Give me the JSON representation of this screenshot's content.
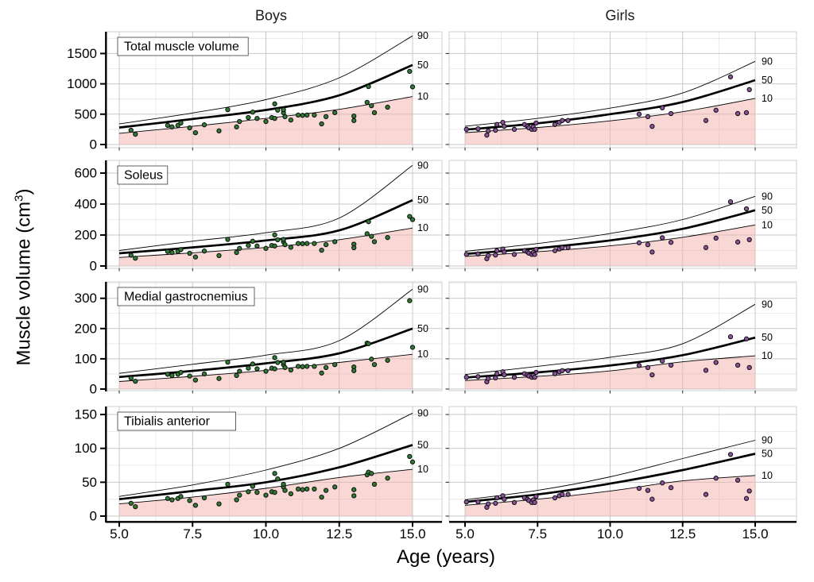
{
  "figure": {
    "column_titles": [
      "Boys",
      "Girls"
    ],
    "x_axis_title": "Age (years)",
    "y_axis_title_pre": "Muscle volume (cm",
    "y_axis_title_sup": "3",
    "y_axis_title_post": ")",
    "colors": {
      "boys_point": "#2f7d33",
      "girls_point": "#8e539f",
      "below_p10_fill": "#f2b0ab",
      "centile_line": "#000000",
      "grid_major": "#c9c9c9",
      "grid_minor": "#e4e4e4",
      "panel_border": "#cfcfcf",
      "axis_line": "#000000"
    }
  },
  "chart_data": {
    "type": "scatter",
    "description": "Muscle volume growth centile charts: scatter of individual children over 10th/50th/90th centile curves; pink region marks area below the 10th centile. Columns = sex, rows = muscle.",
    "x": {
      "label": "Age (years)",
      "ticks": [
        5.0,
        7.5,
        10.0,
        12.5,
        15.0
      ],
      "tick_labels": [
        "5.0",
        "7.5",
        "10.0",
        "12.5",
        "15.0"
      ],
      "range_years": [
        5,
        15
      ]
    },
    "ylabel": "Muscle volume (cm3)",
    "legend_position": "right-of-panel",
    "grid": true,
    "percentiles": [
      "90",
      "50",
      "10"
    ],
    "centile_ages": [
      5,
      7.5,
      10,
      12.5,
      15
    ],
    "columns": [
      "Boys",
      "Girls"
    ],
    "rows": [
      {
        "label": "Total muscle volume",
        "y_ticks": [
          0,
          500,
          1000,
          1500
        ],
        "y_tick_labels": [
          "0",
          "500",
          "1000",
          "1500"
        ],
        "boys": {
          "p90": [
            340,
            520,
            740,
            1100,
            1790
          ],
          "p50": [
            280,
            420,
            570,
            810,
            1310
          ],
          "p10": [
            185,
            300,
            430,
            580,
            790
          ],
          "ages": [
            5.4,
            5.55,
            6.65,
            6.8,
            7.0,
            7.1,
            7.4,
            7.6,
            7.9,
            8.4,
            8.7,
            9.0,
            9.1,
            9.4,
            9.55,
            9.7,
            10.0,
            10.2,
            10.3,
            10.3,
            10.4,
            10.6,
            10.6,
            10.65,
            10.85,
            11.1,
            11.25,
            11.4,
            11.65,
            11.9,
            12.05,
            12.35,
            13.0,
            13.0,
            13.45,
            13.5,
            13.6,
            13.7,
            14.15,
            14.9,
            15.0
          ],
          "values": [
            235,
            170,
            315,
            290,
            315,
            355,
            275,
            195,
            325,
            225,
            575,
            290,
            380,
            445,
            535,
            430,
            380,
            445,
            430,
            670,
            565,
            525,
            575,
            460,
            405,
            485,
            480,
            485,
            485,
            340,
            460,
            525,
            470,
            395,
            695,
            955,
            640,
            525,
            615,
            1205,
            950
          ]
        },
        "girls": {
          "p90": [
            300,
            430,
            600,
            850,
            1370
          ],
          "p50": [
            245,
            350,
            500,
            700,
            1060
          ],
          "p10": [
            195,
            280,
            390,
            540,
            760
          ],
          "ages": [
            5.05,
            5.45,
            5.75,
            5.8,
            6.05,
            6.1,
            6.3,
            6.35,
            6.7,
            7.05,
            7.15,
            7.2,
            7.3,
            7.35,
            7.4,
            7.45,
            8.1,
            8.25,
            8.35,
            8.55,
            11.0,
            11.3,
            11.45,
            11.8,
            12.1,
            13.3,
            13.65,
            14.15,
            14.4,
            14.7,
            14.8
          ],
          "values": [
            250,
            260,
            155,
            225,
            235,
            330,
            365,
            300,
            250,
            330,
            300,
            275,
            250,
            290,
            250,
            355,
            330,
            365,
            395,
            395,
            500,
            460,
            300,
            605,
            510,
            395,
            565,
            1115,
            510,
            525,
            905
          ]
        }
      },
      {
        "label": "Soleus",
        "y_ticks": [
          0,
          200,
          400,
          600
        ],
        "y_tick_labels": [
          "0",
          "200",
          "400",
          "600"
        ],
        "boys": {
          "p90": [
            100,
            160,
            215,
            310,
            650
          ],
          "p50": [
            82,
            120,
            165,
            230,
            425
          ],
          "p10": [
            55,
            85,
            120,
            170,
            245
          ],
          "ages": [
            5.4,
            5.55,
            6.65,
            6.8,
            7.0,
            7.1,
            7.4,
            7.6,
            7.9,
            8.4,
            8.7,
            9.0,
            9.1,
            9.4,
            9.55,
            9.7,
            10.0,
            10.2,
            10.3,
            10.3,
            10.4,
            10.6,
            10.6,
            10.65,
            10.85,
            11.1,
            11.25,
            11.4,
            11.65,
            11.9,
            12.05,
            12.35,
            13.0,
            13.0,
            13.45,
            13.5,
            13.6,
            13.7,
            14.15,
            14.9,
            15.0
          ],
          "values": [
            70,
            51,
            94,
            87,
            94,
            106,
            82,
            58,
            97,
            67,
            172,
            87,
            114,
            133,
            160,
            129,
            114,
            133,
            129,
            201,
            169,
            157,
            172,
            138,
            121,
            145,
            144,
            145,
            145,
            102,
            138,
            157,
            141,
            118,
            208,
            286,
            192,
            157,
            184,
            320,
            300
          ]
        },
        "girls": {
          "p90": [
            95,
            145,
            210,
            300,
            450
          ],
          "p50": [
            78,
            115,
            165,
            240,
            360
          ],
          "p10": [
            62,
            92,
            130,
            185,
            265
          ],
          "ages": [
            5.05,
            5.45,
            5.75,
            5.8,
            6.05,
            6.1,
            6.3,
            6.35,
            6.7,
            7.05,
            7.15,
            7.2,
            7.3,
            7.35,
            7.4,
            7.45,
            8.1,
            8.25,
            8.35,
            8.55,
            11.0,
            11.3,
            11.45,
            11.8,
            12.1,
            13.3,
            13.65,
            14.15,
            14.4,
            14.7,
            14.8
          ],
          "values": [
            75,
            78,
            47,
            68,
            71,
            99,
            110,
            90,
            75,
            99,
            90,
            83,
            75,
            87,
            75,
            107,
            99,
            110,
            119,
            119,
            150,
            138,
            90,
            182,
            153,
            119,
            180,
            415,
            155,
            369,
            170
          ]
        }
      },
      {
        "label": "Medial gastrocnemius",
        "y_ticks": [
          0,
          100,
          200,
          300
        ],
        "y_tick_labels": [
          "0",
          "100",
          "200",
          "300"
        ],
        "boys": {
          "p90": [
            52,
            82,
            112,
            160,
            330
          ],
          "p50": [
            40,
            60,
            85,
            118,
            200
          ],
          "p10": [
            25,
            42,
            62,
            88,
            115
          ],
          "ages": [
            5.4,
            5.55,
            6.65,
            6.8,
            7.0,
            7.1,
            7.4,
            7.6,
            7.9,
            8.4,
            8.7,
            9.0,
            9.1,
            9.4,
            9.55,
            9.7,
            10.0,
            10.2,
            10.3,
            10.3,
            10.4,
            10.6,
            10.6,
            10.65,
            10.85,
            11.1,
            11.25,
            11.4,
            11.65,
            11.9,
            12.05,
            12.35,
            13.0,
            13.0,
            13.45,
            13.5,
            13.6,
            13.7,
            14.15,
            14.9,
            15.0
          ],
          "values": [
            36,
            26,
            49,
            45,
            49,
            55,
            43,
            30,
            50,
            35,
            89,
            45,
            59,
            69,
            83,
            67,
            59,
            69,
            67,
            104,
            88,
            81,
            89,
            71,
            63,
            75,
            74,
            75,
            75,
            53,
            71,
            81,
            73,
            61,
            152,
            150,
            99,
            81,
            95,
            292,
            138
          ]
        },
        "girls": {
          "p90": [
            48,
            75,
            105,
            150,
            280
          ],
          "p50": [
            38,
            55,
            78,
            112,
            170
          ],
          "p10": [
            28,
            42,
            60,
            90,
            110
          ],
          "ages": [
            5.05,
            5.45,
            5.75,
            5.8,
            6.05,
            6.1,
            6.3,
            6.35,
            6.7,
            7.05,
            7.15,
            7.2,
            7.3,
            7.35,
            7.4,
            7.45,
            8.1,
            8.25,
            8.35,
            8.55,
            11.0,
            11.3,
            11.45,
            11.8,
            12.1,
            13.3,
            13.65,
            14.15,
            14.4,
            14.7,
            14.8
          ],
          "values": [
            39,
            41,
            24,
            35,
            37,
            51,
            57,
            47,
            39,
            51,
            47,
            43,
            39,
            45,
            39,
            55,
            51,
            57,
            61,
            61,
            78,
            71,
            47,
            93,
            79,
            62,
            88,
            173,
            79,
            166,
            71
          ]
        }
      },
      {
        "label": "Tibialis anterior",
        "y_ticks": [
          0,
          50,
          100,
          150
        ],
        "y_tick_labels": [
          "0",
          "50",
          "100",
          "150"
        ],
        "boys": {
          "p90": [
            29,
            46,
            68,
            100,
            152
          ],
          "p50": [
            25,
            37,
            50,
            72,
            105
          ],
          "p10": [
            18,
            28,
            41,
            57,
            69
          ],
          "ages": [
            5.4,
            5.55,
            6.65,
            6.8,
            7.0,
            7.1,
            7.4,
            7.6,
            7.9,
            8.4,
            8.7,
            9.0,
            9.1,
            9.4,
            9.55,
            9.7,
            10.0,
            10.2,
            10.3,
            10.3,
            10.4,
            10.6,
            10.6,
            10.65,
            10.85,
            11.1,
            11.25,
            11.4,
            11.65,
            11.9,
            12.05,
            12.35,
            13.0,
            13.0,
            13.45,
            13.5,
            13.6,
            13.7,
            14.15,
            14.9,
            15.0
          ],
          "values": [
            19,
            14,
            26,
            24,
            26,
            29,
            23,
            16,
            27,
            18,
            47,
            24,
            31,
            36,
            44,
            35,
            31,
            36,
            35,
            63,
            55,
            43,
            47,
            38,
            33,
            40,
            39,
            40,
            40,
            28,
            38,
            43,
            39,
            30,
            61,
            65,
            63,
            47,
            56,
            88,
            80
          ]
        },
        "girls": {
          "p90": [
            24,
            38,
            58,
            85,
            112
          ],
          "p50": [
            21,
            32,
            48,
            68,
            92
          ],
          "p10": [
            16,
            25,
            37,
            52,
            60
          ],
          "ages": [
            5.05,
            5.45,
            5.75,
            5.8,
            6.05,
            6.1,
            6.3,
            6.35,
            6.7,
            7.05,
            7.15,
            7.2,
            7.3,
            7.35,
            7.4,
            7.45,
            8.1,
            8.25,
            8.35,
            8.55,
            11.0,
            11.3,
            11.45,
            11.8,
            12.1,
            13.3,
            13.65,
            14.15,
            14.4,
            14.7,
            14.8
          ],
          "values": [
            21,
            21,
            13,
            18,
            19,
            27,
            30,
            25,
            20,
            27,
            25,
            23,
            20,
            24,
            20,
            29,
            27,
            30,
            32,
            32,
            41,
            38,
            25,
            49,
            42,
            32,
            56,
            91,
            53,
            26,
            37
          ]
        }
      }
    ]
  }
}
